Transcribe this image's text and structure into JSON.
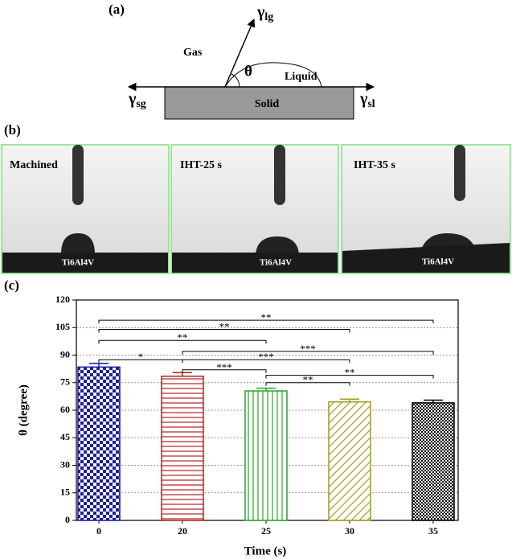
{
  "panel_a": {
    "label": "(a)",
    "gamma_lg": {
      "symbol": "γ",
      "sub": "lg"
    },
    "gas": "Gas",
    "theta": "θ",
    "liquid": "Liquid",
    "gamma_sg": {
      "symbol": "γ",
      "sub": "sg"
    },
    "solid": "Solid",
    "gamma_sl": {
      "symbol": "γ",
      "sub": "sl"
    }
  },
  "panel_b": {
    "label": "(b)",
    "images": [
      {
        "title": "Machined",
        "substrate": "Ti6Al4V"
      },
      {
        "title": "IHT-25 s",
        "substrate": "Ti6Al4V"
      },
      {
        "title": "IHT-35 s",
        "substrate": "Ti6Al4V"
      }
    ]
  },
  "chart_data": {
    "type": "bar",
    "panel_label": "(c)",
    "xlabel": "Time (s)",
    "ylabel": "θ (degree)",
    "categories": [
      "0",
      "20",
      "25",
      "30",
      "35"
    ],
    "series": [
      {
        "values": [
          83.5,
          78.5,
          70.5,
          64.5,
          64
        ],
        "errors": [
          2,
          2,
          1.5,
          1.5,
          1.5
        ],
        "colors": [
          "#1c1ca8",
          "#b52020",
          "#22aa22",
          "#a39b1c",
          "#000000"
        ]
      }
    ],
    "ylim": [
      0,
      120
    ],
    "yticks": [
      0,
      15,
      30,
      45,
      60,
      75,
      90,
      105,
      120
    ],
    "grid": true,
    "brackets": [
      {
        "label": "**",
        "between": [
          "0",
          "35"
        ],
        "y": 109
      },
      {
        "label": "**",
        "between": [
          "0",
          "30"
        ],
        "y": 104
      },
      {
        "label": "**",
        "between": [
          "0",
          "25"
        ],
        "y": 98
      },
      {
        "label": "***",
        "between": [
          "20",
          "35"
        ],
        "y": 92
      },
      {
        "label": "*",
        "between": [
          "0",
          "20"
        ],
        "y": 87.5
      },
      {
        "label": "***",
        "between": [
          "20",
          "30"
        ],
        "y": 87.5
      },
      {
        "label": "***",
        "between": [
          "20",
          "25"
        ],
        "y": 82
      },
      {
        "label": "**",
        "between": [
          "25",
          "35"
        ],
        "y": 79
      },
      {
        "label": "**",
        "between": [
          "25",
          "30"
        ],
        "y": 75
      }
    ]
  }
}
